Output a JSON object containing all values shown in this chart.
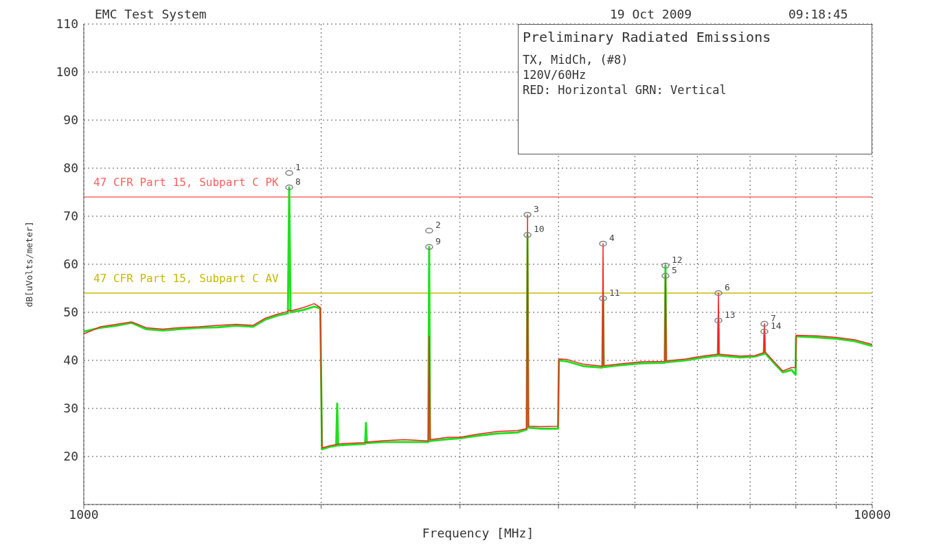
{
  "chart_data": {
    "type": "line",
    "title": "Preliminary Radiated Emissions",
    "annotations": [
      "EMC Test System",
      "19 Oct 2009",
      "09:18:45",
      "TX, MidCh, (#8)",
      "120V/60Hz",
      "RED: Horizontal GRN: Vertical",
      {
        "text": "1",
        "x": 1822,
        "y": 79
      },
      {
        "text": "8",
        "x": 1822,
        "y": 76
      },
      {
        "text": "2",
        "x": 2742,
        "y": 67
      },
      {
        "text": "9",
        "x": 2742,
        "y": 63.6
      },
      {
        "text": "3",
        "x": 3654,
        "y": 70.3
      },
      {
        "text": "10",
        "x": 3654,
        "y": 66.1
      },
      {
        "text": "4",
        "x": 4556,
        "y": 64.3
      },
      {
        "text": "11",
        "x": 4556,
        "y": 52.9
      },
      {
        "text": "12",
        "x": 5467,
        "y": 59.7
      },
      {
        "text": "5",
        "x": 5467,
        "y": 57.6
      },
      {
        "text": "6",
        "x": 6381,
        "y": 54
      },
      {
        "text": "13",
        "x": 6381,
        "y": 48.3
      },
      {
        "text": "7",
        "x": 7298,
        "y": 47.6
      },
      {
        "text": "14",
        "x": 7298,
        "y": 46
      }
    ],
    "xlabel": "Frequency [MHz]",
    "ylabel": "dB[uVolts/meter]",
    "log": "x",
    "xlim": [
      1000,
      10000
    ],
    "xticks": [
      1000,
      {
        "value": 2000,
        "label": null
      },
      {
        "value": 3000,
        "label": null
      },
      {
        "value": 4000,
        "label": null
      },
      {
        "value": 5000,
        "label": null
      },
      {
        "value": 6000,
        "label": null
      },
      {
        "value": 7000,
        "label": null
      },
      {
        "value": 8000,
        "label": null
      },
      {
        "value": 9000,
        "label": null
      },
      10000
    ],
    "ylim": [
      10,
      110
    ],
    "yticks": [
      20,
      30,
      40,
      50,
      60,
      70,
      80,
      90,
      100,
      110
    ],
    "grid": true,
    "line_style": "solid",
    "x": [
      1000,
      1050,
      1100,
      1150,
      1200,
      1260,
      1320,
      1400,
      1480,
      1560,
      1640,
      1700,
      1760,
      1815,
      1822,
      1829,
      1900,
      1960,
      1995,
      2005,
      2050,
      2090,
      2096,
      2102,
      2200,
      2274,
      2280,
      2286,
      2400,
      2550,
      2700,
      2735,
      2742,
      2749,
      2900,
      3000,
      3150,
      3350,
      3550,
      3645,
      3654,
      3663,
      3800,
      3995,
      4005,
      4100,
      4300,
      4546,
      4556,
      4566,
      4800,
      5100,
      5455,
      5467,
      5479,
      5800,
      6100,
      6370,
      6381,
      6392,
      6800,
      7100,
      7285,
      7298,
      7311,
      7500,
      7700,
      7900,
      7995,
      8005,
      8500,
      9000,
      9500,
      10000
    ],
    "series": [
      {
        "color": "#ff2020",
        "values": [
          45.5,
          47,
          47.5,
          48,
          46.8,
          46.5,
          46.8,
          47,
          47.3,
          47.5,
          47.3,
          48.8,
          49.6,
          50.2,
          50.5,
          50.3,
          51,
          51.8,
          51,
          21.8,
          22.2,
          22.5,
          22.5,
          22.6,
          22.8,
          22.9,
          23,
          23,
          23.3,
          23.5,
          23.3,
          23.2,
          45,
          23.5,
          24,
          24,
          24.6,
          25.2,
          25.4,
          25.8,
          70.3,
          26.3,
          26.2,
          26.3,
          40.3,
          40.2,
          39.2,
          38.8,
          64.3,
          38.9,
          39.3,
          39.7,
          39.8,
          57.6,
          39.9,
          40.3,
          40.9,
          41.3,
          54,
          41.3,
          40.9,
          41,
          41.6,
          47.6,
          41.8,
          39.8,
          37.8,
          38.5,
          38.5,
          45.2,
          45.1,
          44.8,
          44.3,
          43.3
        ]
      },
      {
        "color": "#20e020",
        "values": [
          46,
          46.8,
          47.2,
          47.8,
          46.5,
          46.2,
          46.5,
          46.8,
          46.9,
          47.2,
          47,
          48.5,
          49.3,
          49.8,
          76,
          50,
          50.5,
          51.2,
          50.8,
          21.5,
          22,
          22.2,
          31,
          22.3,
          22.5,
          22.6,
          27,
          22.8,
          23,
          23,
          23,
          23,
          63.6,
          23.2,
          23.6,
          23.8,
          24.3,
          24.8,
          25,
          25.6,
          66.1,
          26,
          25.8,
          25.8,
          40,
          39.8,
          38.8,
          38.5,
          52.9,
          38.6,
          39,
          39.4,
          39.5,
          59.7,
          39.6,
          40,
          40.6,
          41,
          48.3,
          41,
          40.6,
          40.8,
          41.3,
          46,
          41.5,
          39.5,
          37.5,
          38,
          37,
          45,
          44.8,
          44.5,
          44,
          43
        ]
      },
      {
        "type": "scatter",
        "color": "#808080",
        "marker": "circle",
        "x": [
          1822,
          1822,
          2742,
          2742,
          3654,
          3654,
          4556,
          4556,
          5467,
          5467,
          6381,
          6381,
          7298,
          7298
        ],
        "values": [
          79,
          76,
          67,
          63.6,
          70.3,
          66.1,
          64.3,
          52.9,
          59.7,
          57.6,
          54,
          48.3,
          47.6,
          46
        ]
      }
    ],
    "ref_lines": [
      {
        "axis": "y",
        "value": 74,
        "label": "47 CFR Part 15, Subpart C PK",
        "color": "#ff6060"
      },
      {
        "axis": "y",
        "value": 54,
        "label": "47 CFR Part 15, Subpart C AV",
        "color": "#c8b800"
      }
    ]
  }
}
